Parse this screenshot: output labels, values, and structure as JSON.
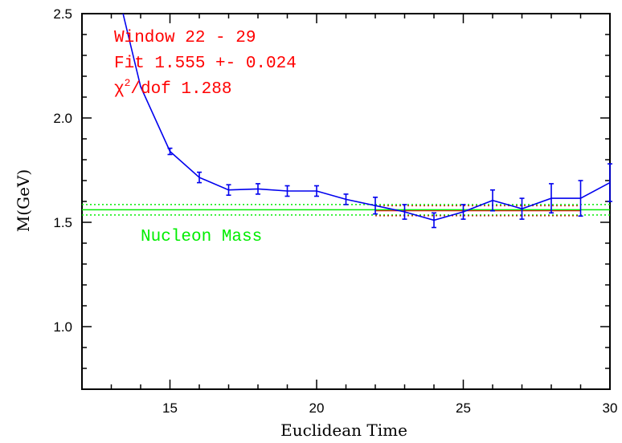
{
  "chart_data": {
    "type": "line",
    "xlabel": "Euclidean Time",
    "ylabel": "M(GeV)",
    "xlim": [
      12,
      30
    ],
    "ylim": [
      0.7,
      2.5
    ],
    "xticks": [
      15,
      20,
      25,
      30
    ],
    "yticks": [
      1.0,
      1.5,
      2.0,
      2.5
    ],
    "grid": false,
    "series": [
      {
        "color": "#0000ee",
        "x": [
          13.4,
          14,
          15,
          16,
          17,
          18,
          19,
          20,
          21,
          22,
          23,
          24,
          25,
          26,
          27,
          28,
          29,
          30
        ],
        "y": [
          2.5,
          2.15,
          1.84,
          1.715,
          1.655,
          1.66,
          1.65,
          1.65,
          1.61,
          1.58,
          1.55,
          1.51,
          1.55,
          1.605,
          1.565,
          1.615,
          1.615,
          1.69
        ],
        "err": [
          0,
          0,
          0.015,
          0.025,
          0.025,
          0.025,
          0.025,
          0.025,
          0.025,
          0.04,
          0.035,
          0.035,
          0.035,
          0.05,
          0.05,
          0.07,
          0.085,
          0.09
        ]
      }
    ],
    "fit_band": {
      "color": "#dd0000",
      "x": [
        22,
        29
      ],
      "center": 1.555,
      "err": 0.024
    },
    "reference_line": {
      "color": "#00ee00",
      "center": 1.56,
      "err": 0.025,
      "label": "Nucleon Mass"
    },
    "annotations": {
      "window": "Window  22 - 29",
      "fit": "Fit  1.555 +- 0.024",
      "chi_symbol": "χ",
      "chi_sup": "2",
      "chi_rest": "/dof    1.288"
    }
  }
}
